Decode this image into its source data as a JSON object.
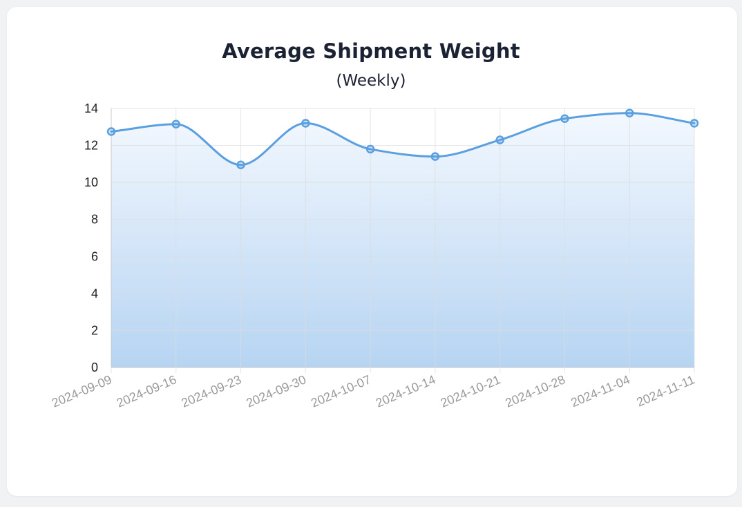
{
  "chart_data": {
    "type": "area",
    "title": "Average Shipment Weight",
    "subtitle": "(Weekly)",
    "xlabel": "",
    "ylabel": "",
    "x": [
      "2024-09-09",
      "2024-09-16",
      "2024-09-23",
      "2024-09-30",
      "2024-10-07",
      "2024-10-14",
      "2024-10-21",
      "2024-10-28",
      "2024-11-04",
      "2024-11-11"
    ],
    "series": [
      {
        "name": "",
        "values": [
          12.75,
          13.15,
          10.95,
          13.2,
          11.8,
          11.4,
          12.3,
          13.45,
          13.75,
          13.2
        ]
      }
    ],
    "ylim": [
      0,
      14
    ],
    "yticks": [
      "0",
      "2",
      "4",
      "6",
      "8",
      "10",
      "12",
      "14"
    ],
    "grid": true,
    "legend": "none",
    "colors": {
      "line": "#5a9fe0",
      "fill_top": "#f3f8fe",
      "fill_bottom": "#b6d4f2",
      "grid": "#dcdcdc"
    }
  }
}
